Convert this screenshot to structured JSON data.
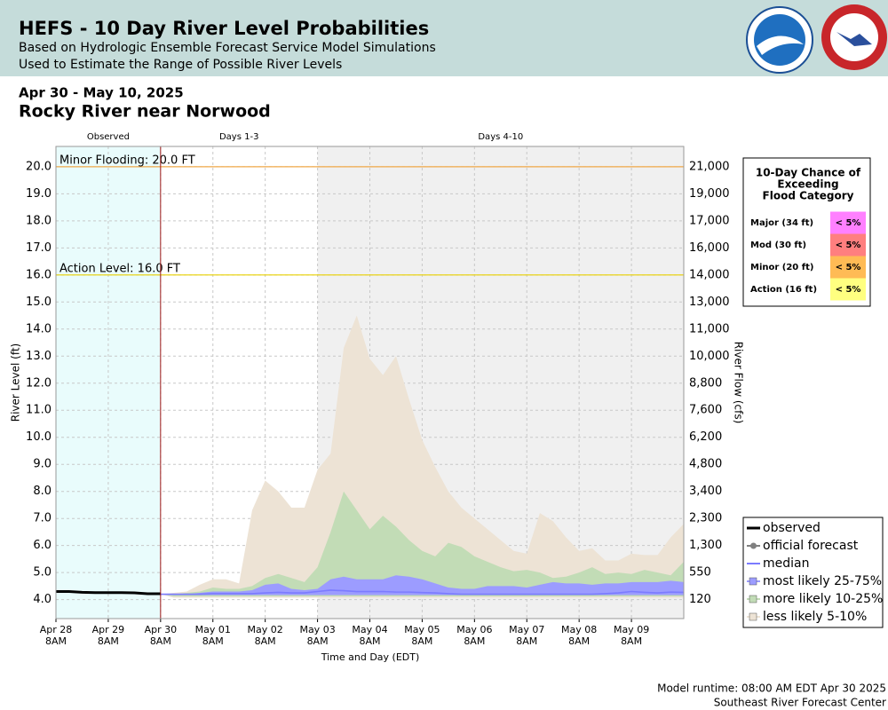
{
  "header": {
    "title": "HEFS - 10 Day River Level Probabilities",
    "subtitle_1": "Based on Hydrologic Ensemble Forecast Service Model Simulations",
    "subtitle_2": "Used to Estimate the Range of Possible River Levels"
  },
  "date_range": "Apr 30 - May 10, 2025",
  "station": "Rocky River near Norwood",
  "chart_data": {
    "type": "line",
    "xlabel": "Time and Day (EDT)",
    "ylabel": "River Level (ft)",
    "y2label": "River Flow (cfs)",
    "xlim": [
      "2025-04-28T08:00",
      "2025-05-10T08:00"
    ],
    "ylim": [
      3.3,
      20.75
    ],
    "grid": true,
    "xticks": [
      {
        "value": "2025-04-28T08:00",
        "label": "Apr 28 8AM"
      },
      {
        "value": "2025-04-29T08:00",
        "label": "Apr 29 8AM"
      },
      {
        "value": "2025-04-30T08:00",
        "label": "Apr 30 8AM"
      },
      {
        "value": "2025-05-01T08:00",
        "label": "May 01 8AM"
      },
      {
        "value": "2025-05-02T08:00",
        "label": "May 02 8AM"
      },
      {
        "value": "2025-05-03T08:00",
        "label": "May 03 8AM"
      },
      {
        "value": "2025-05-04T08:00",
        "label": "May 04 8AM"
      },
      {
        "value": "2025-05-05T08:00",
        "label": "May 05 8AM"
      },
      {
        "value": "2025-05-06T08:00",
        "label": "May 06 8AM"
      },
      {
        "value": "2025-05-07T08:00",
        "label": "May 07 8AM"
      },
      {
        "value": "2025-05-08T08:00",
        "label": "May 08 8AM"
      },
      {
        "value": "2025-05-09T08:00",
        "label": "May 09 8AM"
      }
    ],
    "yticks": [
      {
        "value": 4,
        "label": "4.0"
      },
      {
        "value": 5,
        "label": "5.0"
      },
      {
        "value": 6,
        "label": "6.0"
      },
      {
        "value": 7,
        "label": "7.0"
      },
      {
        "value": 8,
        "label": "8.0"
      },
      {
        "value": 9,
        "label": "9.0"
      },
      {
        "value": 10,
        "label": "10.0"
      },
      {
        "value": 11,
        "label": "11.0"
      },
      {
        "value": 12,
        "label": "12.0"
      },
      {
        "value": 13,
        "label": "13.0"
      },
      {
        "value": 14,
        "label": "14.0"
      },
      {
        "value": 15,
        "label": "15.0"
      },
      {
        "value": 16,
        "label": "16.0"
      },
      {
        "value": 17,
        "label": "17.0"
      },
      {
        "value": 18,
        "label": "18.0"
      },
      {
        "value": 19,
        "label": "19.0"
      },
      {
        "value": 20,
        "label": "20.0"
      }
    ],
    "y2ticks": [
      120,
      550,
      {
        "value": 1300,
        "label": "1,300"
      },
      {
        "value": 2300,
        "label": "2,300"
      },
      {
        "value": 3400,
        "label": "3,400"
      },
      {
        "value": 4800,
        "label": "4,800"
      },
      {
        "value": 6200,
        "label": "6,200"
      },
      {
        "value": 7600,
        "label": "7,600"
      },
      {
        "value": 8800,
        "label": "8,800"
      },
      {
        "value": 10000,
        "label": "10,000"
      },
      {
        "value": 11000,
        "label": "11,000"
      },
      {
        "value": 13000,
        "label": "13,000"
      },
      {
        "value": 14000,
        "label": "14,000"
      },
      {
        "value": 16000,
        "label": "16,000"
      },
      {
        "value": 17000,
        "label": "17,000"
      },
      {
        "value": 19000,
        "label": "19,000"
      },
      {
        "value": 21000,
        "label": "21,000"
      }
    ],
    "regions": [
      {
        "label": "Observed",
        "from": "2025-04-28T08:00",
        "to": "2025-04-30T08:00",
        "color": "#e9fcfc"
      },
      {
        "label": "Days 1-3",
        "from": "2025-04-30T08:00",
        "to": "2025-05-03T08:00",
        "color": "#ffffff"
      },
      {
        "label": "Days 4-10",
        "from": "2025-05-03T08:00",
        "to": "2025-05-10T08:00",
        "color": "#f0f0f0"
      }
    ],
    "thresholds": [
      {
        "label": "Minor Flooding: 20.0 FT",
        "value": 20,
        "color": "#f0a848"
      },
      {
        "label": "Action Level: 16.0 FT",
        "value": 16,
        "color": "#e8d000"
      }
    ],
    "x": [
      "2025-04-30T08:00",
      "2025-04-30T14:00",
      "2025-04-30T20:00",
      "2025-05-01T02:00",
      "2025-05-01T08:00",
      "2025-05-01T14:00",
      "2025-05-01T20:00",
      "2025-05-02T02:00",
      "2025-05-02T08:00",
      "2025-05-02T14:00",
      "2025-05-02T20:00",
      "2025-05-03T02:00",
      "2025-05-03T08:00",
      "2025-05-03T14:00",
      "2025-05-03T20:00",
      "2025-05-04T02:00",
      "2025-05-04T08:00",
      "2025-05-04T14:00",
      "2025-05-04T20:00",
      "2025-05-05T02:00",
      "2025-05-05T08:00",
      "2025-05-05T14:00",
      "2025-05-05T20:00",
      "2025-05-06T02:00",
      "2025-05-06T08:00",
      "2025-05-06T14:00",
      "2025-05-06T20:00",
      "2025-05-07T02:00",
      "2025-05-07T08:00",
      "2025-05-07T14:00",
      "2025-05-07T20:00",
      "2025-05-08T02:00",
      "2025-05-08T08:00",
      "2025-05-08T14:00",
      "2025-05-08T20:00",
      "2025-05-09T02:00",
      "2025-05-09T08:00",
      "2025-05-09T14:00",
      "2025-05-09T20:00",
      "2025-05-10T02:00",
      "2025-05-10T08:00"
    ],
    "series": [
      {
        "name": "observed",
        "color": "#000000",
        "style": "line",
        "x": [
          "2025-04-28T08:00",
          "2025-04-28T14:00",
          "2025-04-28T20:00",
          "2025-04-29T02:00",
          "2025-04-29T08:00",
          "2025-04-29T14:00",
          "2025-04-29T20:00",
          "2025-04-30T02:00",
          "2025-04-30T08:00"
        ],
        "values": [
          4.3,
          4.3,
          4.27,
          4.26,
          4.26,
          4.26,
          4.25,
          4.22,
          4.22
        ]
      },
      {
        "name": "official forecast",
        "color": "#808080",
        "style": "marker-line",
        "x": [],
        "values": []
      },
      {
        "name": "median",
        "color": "#7b7bff",
        "style": "line",
        "values": [
          4.2,
          4.2,
          4.2,
          4.2,
          4.22,
          4.22,
          4.22,
          4.22,
          4.25,
          4.27,
          4.25,
          4.25,
          4.3,
          4.35,
          4.33,
          4.3,
          4.3,
          4.3,
          4.28,
          4.28,
          4.26,
          4.25,
          4.22,
          4.2,
          4.2,
          4.2,
          4.2,
          4.2,
          4.2,
          4.2,
          4.2,
          4.2,
          4.2,
          4.2,
          4.22,
          4.25,
          4.3,
          4.27,
          4.25,
          4.28,
          4.27
        ]
      },
      {
        "name": "most likely 25-75%",
        "color": "#9c9cff",
        "style": "band",
        "values": [
          4.2,
          4.2,
          4.2,
          4.25,
          4.3,
          4.3,
          4.3,
          4.35,
          4.55,
          4.6,
          4.4,
          4.35,
          4.4,
          4.75,
          4.85,
          4.75,
          4.75,
          4.75,
          4.9,
          4.85,
          4.75,
          4.6,
          4.45,
          4.4,
          4.4,
          4.5,
          4.5,
          4.5,
          4.45,
          4.55,
          4.65,
          4.6,
          4.6,
          4.55,
          4.6,
          4.6,
          4.65,
          4.65,
          4.65,
          4.7,
          4.65
        ],
        "low": [
          4.2,
          4.17,
          4.17,
          4.17,
          4.17,
          4.17,
          4.17,
          4.17,
          4.17,
          4.17,
          4.17,
          4.17,
          4.17,
          4.17,
          4.17,
          4.17,
          4.17,
          4.17,
          4.17,
          4.17,
          4.17,
          4.17,
          4.17,
          4.17,
          4.17,
          4.17,
          4.17,
          4.17,
          4.17,
          4.17,
          4.17,
          4.17,
          4.17,
          4.17,
          4.17,
          4.17,
          4.17,
          4.17,
          4.17,
          4.17,
          4.17
        ]
      },
      {
        "name": "more likely 10-25%",
        "color": "#c2dcb6",
        "style": "band",
        "values": [
          4.2,
          4.2,
          4.25,
          4.3,
          4.45,
          4.4,
          4.4,
          4.5,
          4.8,
          4.95,
          4.8,
          4.65,
          5.2,
          6.5,
          8.0,
          7.3,
          6.6,
          7.1,
          6.7,
          6.2,
          5.8,
          5.6,
          6.1,
          5.95,
          5.6,
          5.4,
          5.2,
          5.05,
          5.1,
          5.0,
          4.8,
          4.85,
          5.0,
          5.2,
          4.95,
          5.0,
          4.95,
          5.1,
          5.0,
          4.9,
          5.4
        ],
        "low": [
          4.2,
          4.12,
          4.12,
          4.12,
          4.12,
          4.12,
          4.12,
          4.12,
          4.12,
          4.12,
          4.12,
          4.12,
          4.12,
          4.12,
          4.12,
          4.12,
          4.12,
          4.12,
          4.12,
          4.12,
          4.12,
          4.12,
          4.12,
          4.12,
          4.12,
          4.12,
          4.12,
          4.12,
          4.12,
          4.12,
          4.12,
          4.12,
          4.12,
          4.12,
          4.12,
          4.12,
          4.12,
          4.12,
          4.12,
          4.12,
          4.12
        ]
      },
      {
        "name": "less likely 5-10%",
        "color": "#ede3d5",
        "style": "band",
        "values": [
          4.2,
          4.25,
          4.3,
          4.55,
          4.75,
          4.75,
          4.6,
          7.3,
          8.4,
          8.0,
          7.4,
          7.4,
          8.8,
          9.4,
          13.3,
          14.5,
          12.9,
          12.3,
          13.0,
          11.4,
          9.9,
          8.9,
          8.0,
          7.4,
          7.0,
          6.6,
          6.2,
          5.8,
          5.7,
          7.2,
          6.9,
          6.3,
          5.8,
          5.9,
          5.45,
          5.45,
          5.7,
          5.65,
          5.65,
          6.3,
          6.8
        ],
        "low": [
          4.2,
          4.07,
          4.07,
          4.07,
          4.07,
          4.07,
          4.07,
          4.07,
          4.07,
          4.07,
          4.07,
          4.07,
          4.07,
          4.07,
          4.07,
          4.07,
          4.07,
          4.07,
          4.07,
          4.07,
          4.07,
          4.07,
          4.07,
          4.07,
          4.07,
          4.07,
          4.07,
          4.07,
          4.07,
          4.07,
          4.07,
          4.07,
          4.07,
          4.07,
          4.07,
          4.07,
          4.07,
          4.07,
          4.07,
          4.07,
          4.07
        ]
      }
    ]
  },
  "flood_table": {
    "title": [
      "10-Day Chance of",
      "Exceeding",
      "Flood Category"
    ],
    "rows": [
      {
        "label": "Major (34 ft)",
        "value": "< 5%",
        "color": "#ff80ff"
      },
      {
        "label": "Mod (30 ft)",
        "value": "< 5%",
        "color": "#ff7f7f"
      },
      {
        "label": "Minor (20 ft)",
        "value": "< 5%",
        "color": "#ffbb55"
      },
      {
        "label": "Action (16 ft)",
        "value": "< 5%",
        "color": "#ffff80"
      }
    ]
  },
  "footer": {
    "runtime": "Model runtime: 08:00 AM EDT Apr 30 2025",
    "center": "Southeast River Forecast Center"
  }
}
